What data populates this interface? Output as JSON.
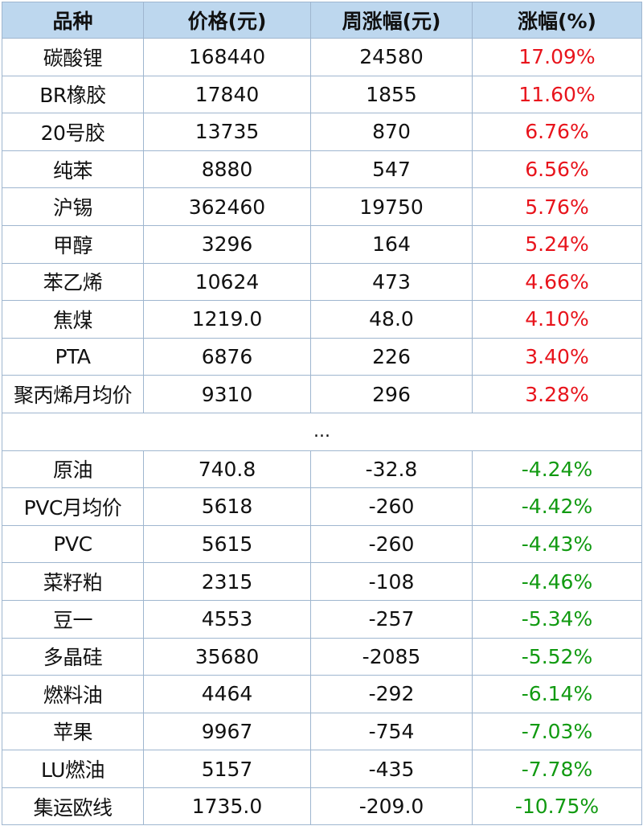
{
  "headers": [
    "品种",
    "价格(元)",
    "周涨幅(元)",
    "涨幅(%)"
  ],
  "colors": {
    "up": "#e8141c",
    "down": "#119a11",
    "header_bg": "#bdd7ee",
    "border": "#9fb6cf"
  },
  "gainers": [
    {
      "name": "碳酸锂",
      "price": "168440",
      "weekly_change": "24580",
      "pct": "17.09%"
    },
    {
      "name": "BR橡胶",
      "price": "17840",
      "weekly_change": "1855",
      "pct": "11.60%"
    },
    {
      "name": "20号胶",
      "price": "13735",
      "weekly_change": "870",
      "pct": "6.76%"
    },
    {
      "name": "纯苯",
      "price": "8880",
      "weekly_change": "547",
      "pct": "6.56%"
    },
    {
      "name": "沪锡",
      "price": "362460",
      "weekly_change": "19750",
      "pct": "5.76%"
    },
    {
      "name": "甲醇",
      "price": "3296",
      "weekly_change": "164",
      "pct": "5.24%"
    },
    {
      "name": "苯乙烯",
      "price": "10624",
      "weekly_change": "473",
      "pct": "4.66%"
    },
    {
      "name": "焦煤",
      "price": "1219.0",
      "weekly_change": "48.0",
      "pct": "4.10%"
    },
    {
      "name": "PTA",
      "price": "6876",
      "weekly_change": "226",
      "pct": "3.40%"
    },
    {
      "name": "聚丙烯月均价",
      "price": "9310",
      "weekly_change": "296",
      "pct": "3.28%"
    }
  ],
  "separator": "...",
  "losers": [
    {
      "name": "原油",
      "price": "740.8",
      "weekly_change": "-32.8",
      "pct": "-4.24%"
    },
    {
      "name": "PVC月均价",
      "price": "5618",
      "weekly_change": "-260",
      "pct": "-4.42%"
    },
    {
      "name": "PVC",
      "price": "5615",
      "weekly_change": "-260",
      "pct": "-4.43%"
    },
    {
      "name": "菜籽粕",
      "price": "2315",
      "weekly_change": "-108",
      "pct": "-4.46%"
    },
    {
      "name": "豆一",
      "price": "4553",
      "weekly_change": "-257",
      "pct": "-5.34%"
    },
    {
      "name": "多晶硅",
      "price": "35680",
      "weekly_change": "-2085",
      "pct": "-5.52%"
    },
    {
      "name": "燃料油",
      "price": "4464",
      "weekly_change": "-292",
      "pct": "-6.14%"
    },
    {
      "name": "苹果",
      "price": "9967",
      "weekly_change": "-754",
      "pct": "-7.03%"
    },
    {
      "name": "LU燃油",
      "price": "5157",
      "weekly_change": "-435",
      "pct": "-7.78%"
    },
    {
      "name": "集运欧线",
      "price": "1735.0",
      "weekly_change": "-209.0",
      "pct": "-10.75%"
    }
  ]
}
